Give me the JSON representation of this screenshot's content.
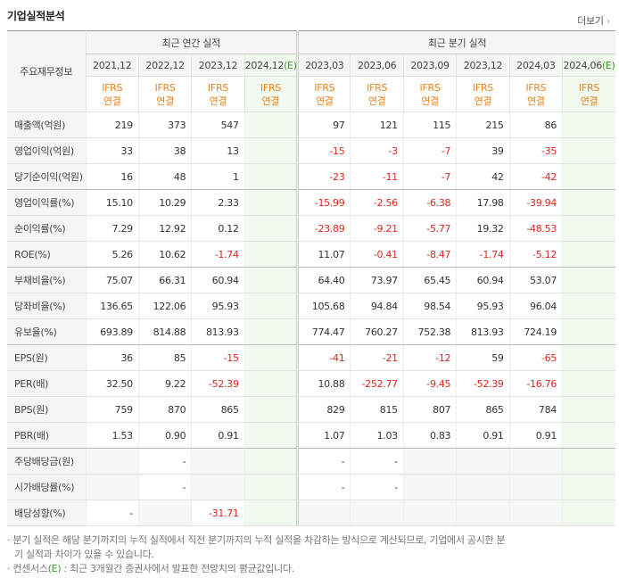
{
  "header": {
    "title": "기업실적분석",
    "more": "더보기"
  },
  "table": {
    "corner": "주요재무정보",
    "annual_group": "최근 연간 실적",
    "quarterly_group": "최근 분기 실적",
    "annual_columns": [
      {
        "date": "2021,12",
        "standard": "IFRS",
        "scope": "연결"
      },
      {
        "date": "2022,12",
        "standard": "IFRS",
        "scope": "연결"
      },
      {
        "date": "2023,12",
        "standard": "IFRS",
        "scope": "연결"
      },
      {
        "date": "2024,12",
        "estimate": "(E)",
        "standard": "IFRS",
        "scope": "연결"
      }
    ],
    "quarterly_columns": [
      {
        "date": "2023,03",
        "standard": "IFRS",
        "scope": "연결"
      },
      {
        "date": "2023,06",
        "standard": "IFRS",
        "scope": "연결"
      },
      {
        "date": "2023,09",
        "standard": "IFRS",
        "scope": "연결"
      },
      {
        "date": "2023,12",
        "standard": "IFRS",
        "scope": "연결"
      },
      {
        "date": "2024,03",
        "standard": "IFRS",
        "scope": "연결"
      },
      {
        "date": "2024,06",
        "estimate": "(E)",
        "standard": "IFRS",
        "scope": "연결"
      }
    ],
    "rows": [
      {
        "label": "매출액(억원)",
        "annual": [
          "219",
          "373",
          "547",
          null
        ],
        "quarterly": [
          "97",
          "121",
          "115",
          "215",
          "86",
          null
        ]
      },
      {
        "label": "영업이익(억원)",
        "annual": [
          "33",
          "38",
          "13",
          null
        ],
        "quarterly": [
          "-15",
          "-3",
          "-7",
          "39",
          "-35",
          null
        ]
      },
      {
        "label": "당기순이익(억원)",
        "annual": [
          "16",
          "48",
          "1",
          null
        ],
        "quarterly": [
          "-23",
          "-11",
          "-7",
          "42",
          "-42",
          null
        ]
      },
      {
        "label": "영업이익률(%)",
        "annual": [
          "15.10",
          "10.29",
          "2.33",
          null
        ],
        "quarterly": [
          "-15.99",
          "-2.56",
          "-6.38",
          "17.98",
          "-39.94",
          null
        ]
      },
      {
        "label": "순이익률(%)",
        "annual": [
          "7.29",
          "12.92",
          "0.12",
          null
        ],
        "quarterly": [
          "-23.89",
          "-9.21",
          "-5.77",
          "19.32",
          "-48.53",
          null
        ]
      },
      {
        "label": "ROE(%)",
        "annual": [
          "5.26",
          "10.62",
          "-1.74",
          null
        ],
        "quarterly": [
          "11.07",
          "-0.41",
          "-8.47",
          "-1.74",
          "-5.12",
          null
        ]
      },
      {
        "label": "부채비율(%)",
        "annual": [
          "75.07",
          "66.31",
          "60.94",
          null
        ],
        "quarterly": [
          "64.40",
          "73.97",
          "65.45",
          "60.94",
          "53.07",
          null
        ]
      },
      {
        "label": "당좌비율(%)",
        "annual": [
          "136.65",
          "122.06",
          "95.93",
          null
        ],
        "quarterly": [
          "105.68",
          "94.84",
          "98.54",
          "95.93",
          "96.04",
          null
        ]
      },
      {
        "label": "유보율(%)",
        "annual": [
          "693.89",
          "814.88",
          "813.93",
          null
        ],
        "quarterly": [
          "774.47",
          "760.27",
          "752.38",
          "813.93",
          "724.19",
          null
        ]
      },
      {
        "label": "EPS(원)",
        "annual": [
          "36",
          "85",
          "-15",
          null
        ],
        "quarterly": [
          "-41",
          "-21",
          "-12",
          "59",
          "-65",
          null
        ]
      },
      {
        "label": "PER(배)",
        "annual": [
          "32.50",
          "9.22",
          "-52.39",
          null
        ],
        "quarterly": [
          "10.88",
          "-252.77",
          "-9.45",
          "-52.39",
          "-16.76",
          null
        ]
      },
      {
        "label": "BPS(원)",
        "annual": [
          "759",
          "870",
          "865",
          null
        ],
        "quarterly": [
          "829",
          "815",
          "807",
          "865",
          "784",
          null
        ]
      },
      {
        "label": "PBR(배)",
        "annual": [
          "1.53",
          "0.90",
          "0.91",
          null
        ],
        "quarterly": [
          "1.07",
          "1.03",
          "0.83",
          "0.91",
          "0.91",
          null
        ]
      },
      {
        "label": "주당배당금(원)",
        "annual": [
          null,
          "-",
          null,
          null
        ],
        "quarterly": [
          "-",
          "-",
          null,
          null,
          null,
          null
        ]
      },
      {
        "label": "시가배당률(%)",
        "annual": [
          null,
          "-",
          null,
          null
        ],
        "quarterly": [
          "-",
          "-",
          null,
          null,
          null,
          null
        ]
      },
      {
        "label": "배당성향(%)",
        "annual": [
          "-",
          null,
          "-31.71",
          null
        ],
        "quarterly": [
          null,
          null,
          null,
          null,
          null,
          null
        ]
      }
    ]
  },
  "notes": [
    {
      "text": "분기 실적은 해당 분기까지의 누적 실적에서 직전 분기까지의 누적 실적을 차감하는 방식으로 계산되므로, 기업에서 공시한 분기 실적과 차이가 있을 수 있습니다."
    },
    {
      "before": "컨센서스",
      "mark": "(E)",
      "after": " : 최근 3개월간 증권사에서 발표한 전망치의 평균값입니다."
    }
  ]
}
